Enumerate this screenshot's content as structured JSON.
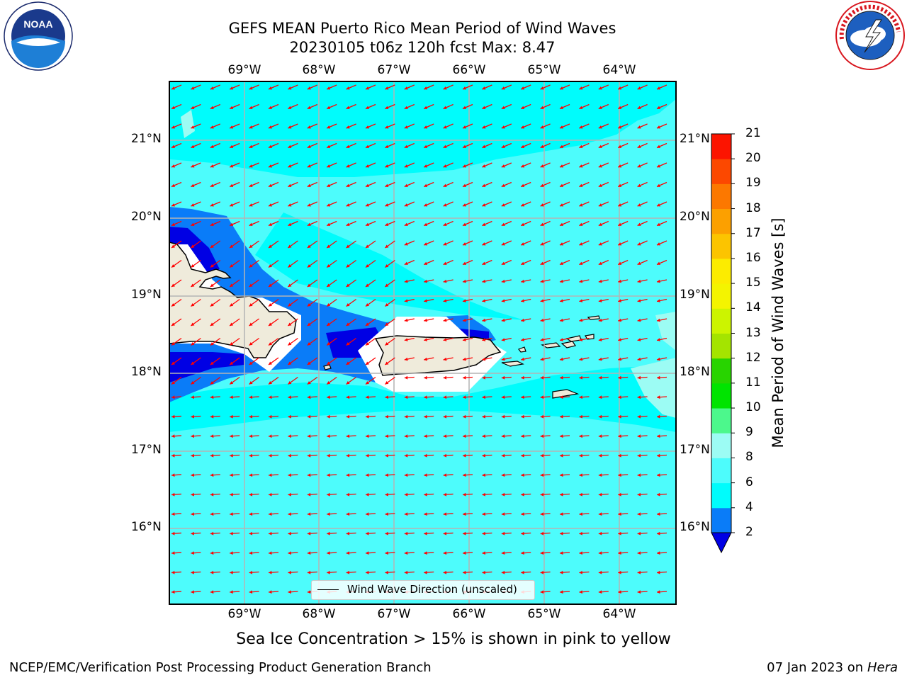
{
  "header": {
    "title_line1": "GEFS MEAN Puerto Rico Mean Period of Wind Waves",
    "title_line2": "20230105 t06z 120h fcst   Max: 8.47"
  },
  "logos": {
    "noaa": {
      "text": "NOAA",
      "ring_text": "NATIONAL OCEANIC AND ATMOSPHERIC ADMINISTRATION · U.S. DEPARTMENT OF COMMERCE"
    },
    "nws": {
      "ring_text": "NATIONAL WEATHER SERVICE"
    }
  },
  "map": {
    "lon_labels": [
      "69°W",
      "68°W",
      "67°W",
      "66°W",
      "65°W",
      "64°W"
    ],
    "lat_labels": [
      "21°N",
      "20°N",
      "19°N",
      "18°N",
      "17°N",
      "16°N"
    ],
    "colors": {
      "ocean_light": "#4dfcfc",
      "ocean_mid": "#00fcfc",
      "ocean_pale": "#9cfcf4",
      "shallow_blue": "#0a7cf8",
      "deep_blue": "#0000e4",
      "land": "#efebdb",
      "arrow": "#ff0000",
      "grid": "#b4b4b4"
    },
    "arrow_direction": "east-to-west (toward west, slight southward)"
  },
  "legend": {
    "label": "Wind Wave Direction (unscaled)"
  },
  "colorbar": {
    "label": "Mean Period of Wind Waves [s]",
    "ticks": [
      "2",
      "4",
      "6",
      "8",
      "9",
      "10",
      "11",
      "12",
      "13",
      "14",
      "15",
      "16",
      "17",
      "18",
      "19",
      "20",
      "21"
    ],
    "colors": [
      "#0a7cf8",
      "#00fcfc",
      "#4dfcfc",
      "#9cfcf4",
      "#4cf88c",
      "#00e400",
      "#28d400",
      "#a4e400",
      "#ccf400",
      "#f4f400",
      "#fcec00",
      "#fcc400",
      "#fca000",
      "#fc7800",
      "#fc4800",
      "#fc1400"
    ],
    "under_color": "#0000e4"
  },
  "footer": {
    "subtitle": "Sea Ice Concentration > 15% is shown in pink to yellow",
    "left": "NCEP/EMC/Verification Post Processing Product Generation Branch",
    "right_prefix": "07 Jan 2023 on ",
    "right_host": "Hera"
  }
}
